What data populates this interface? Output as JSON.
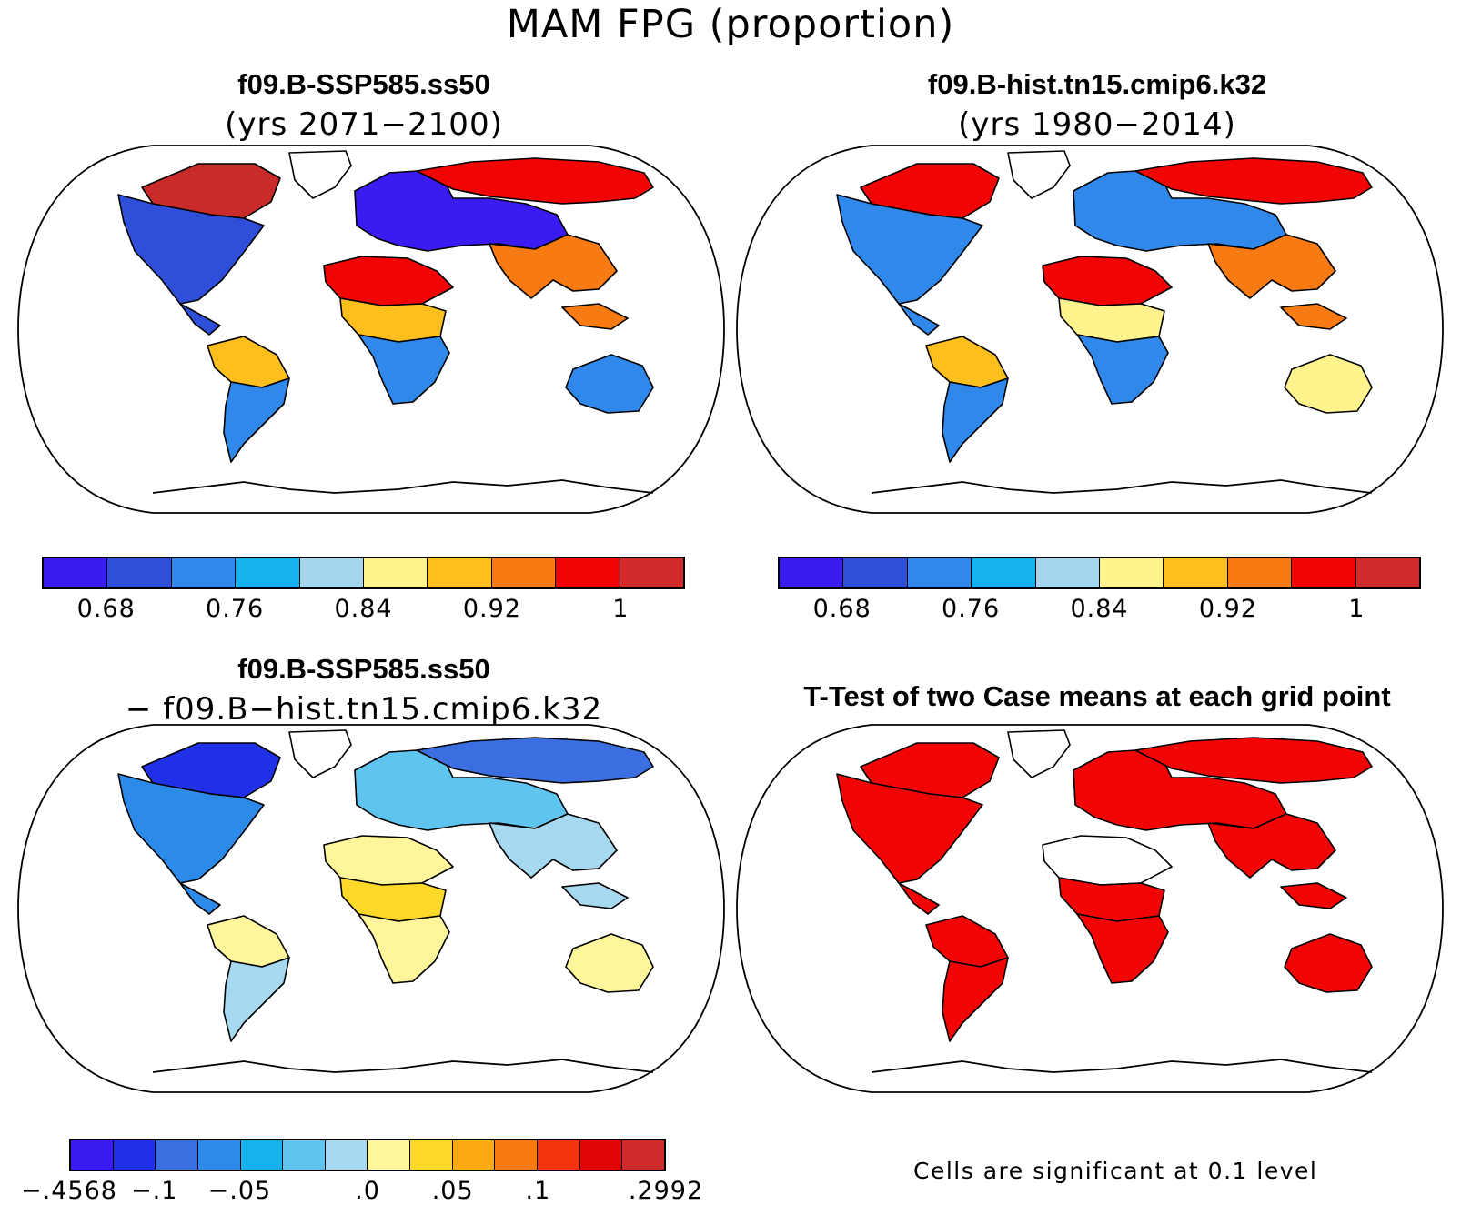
{
  "title": "MAM FPG (proportion)",
  "panels": {
    "p1": {
      "title": "f09.B-SSP585.ss50",
      "subtitle": "(yrs 2071−2100)"
    },
    "p2": {
      "title": "f09.B-hist.tn15.cmip6.k32",
      "subtitle": "(yrs 1980−2014)"
    },
    "p3": {
      "title": "f09.B-SSP585.ss50",
      "subtitle": "− f09.B−hist.tn15.cmip6.k32"
    },
    "p4": {
      "title": "T-Test of two Case means at each grid point",
      "note": "Cells are significant at 0.1 level"
    }
  },
  "colorbar_abs": {
    "colors": [
      "#3a1cf2",
      "#2f4fdb",
      "#2f88ea",
      "#16b2ee",
      "#a6d5ee",
      "#fff38d",
      "#fcbf1e",
      "#f77a13",
      "#f20404",
      "#d22a2a"
    ],
    "labels": [
      "0.68",
      "0.76",
      "0.84",
      "0.92",
      "1"
    ]
  },
  "colorbar_diff": {
    "colors": [
      "#3a1cf2",
      "#1f30e6",
      "#3b6ee0",
      "#2c8ae8",
      "#16b2ee",
      "#5fc4ee",
      "#a6d9f0",
      "#fff59a",
      "#ffd92a",
      "#fcaa14",
      "#f77a13",
      "#f2350f",
      "#e00404",
      "#d02b2b"
    ],
    "labels": [
      "−.4568",
      "−.1",
      "−.05",
      ".0",
      ".05",
      ".1",
      ".2992"
    ]
  },
  "map_colors": {
    "p1": {
      "na": "#2f4fdb",
      "canada": "#c92a2a",
      "sa": "#fcbf1e",
      "sa_south": "#2f88ea",
      "eur": "#3a1cf2",
      "sib": "#f20404",
      "sahara": "#f20404",
      "afr_s": "#2f88ea",
      "afr_mid": "#fcbf1e",
      "asia": "#f77a13",
      "aus": "#2f88ea",
      "greenland": "#ffffff"
    },
    "p2": {
      "na": "#2f88ea",
      "canada": "#f20404",
      "sa": "#fcbf1e",
      "sa_south": "#2f88ea",
      "eur": "#2f88ea",
      "sib": "#f20404",
      "sahara": "#f20404",
      "afr_s": "#2f88ea",
      "afr_mid": "#fff38d",
      "asia": "#f77a13",
      "aus": "#fff38d",
      "greenland": "#ffffff"
    },
    "p3": {
      "na": "#2c8ae8",
      "canada": "#1f30e6",
      "sa": "#fff59a",
      "sa_south": "#a6d9f0",
      "eur": "#5fc4ee",
      "sib": "#3b6ee0",
      "sahara": "#fff59a",
      "afr_s": "#fff59a",
      "afr_mid": "#ffd92a",
      "asia": "#a6d9f0",
      "aus": "#fff59a",
      "greenland": "#ffffff"
    },
    "p4": {
      "na": "#f20404",
      "canada": "#f20404",
      "sa": "#f20404",
      "sa_south": "#f20404",
      "eur": "#f20404",
      "sib": "#f20404",
      "sahara": "#ffffff",
      "afr_s": "#f20404",
      "afr_mid": "#f20404",
      "asia": "#f20404",
      "aus": "#f20404",
      "greenland": "#ffffff"
    }
  }
}
